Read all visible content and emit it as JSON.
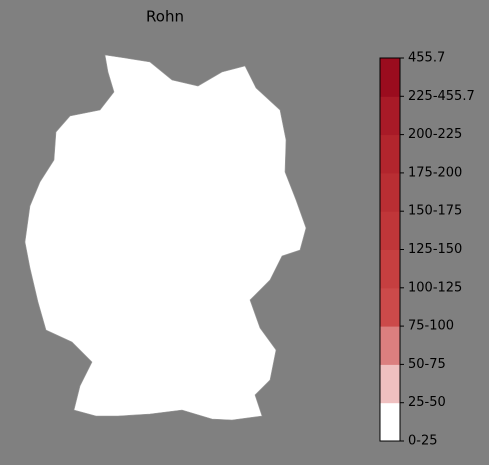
{
  "title": "Rohn",
  "legend": {
    "labels": [
      "0-25",
      "25-50",
      "50-75",
      "75-100",
      "100-125",
      "125-150",
      "150-175",
      "175-200",
      "200-225",
      "225-455.7",
      "455.7"
    ],
    "colors": [
      "#ffffff",
      "#efc0c0",
      "#db7f7f",
      "#cc4a4a",
      "#c63f40",
      "#c03639",
      "#b92e33",
      "#b2252d",
      "#a81a27",
      "#9a0c1e"
    ]
  }
}
